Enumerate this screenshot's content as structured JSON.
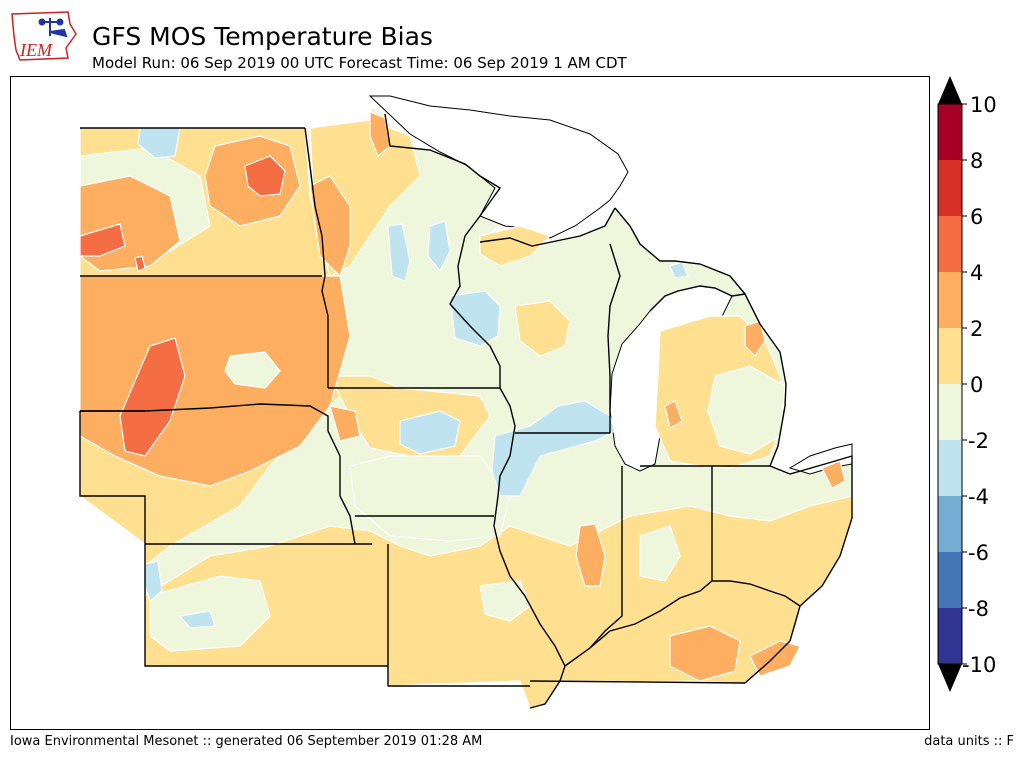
{
  "header": {
    "title": "GFS MOS Temperature Bias",
    "subtitle": "Model Run: 06 Sep 2019 00 UTC Forecast Time: 06 Sep 2019 1 AM CDT",
    "logo_text": "IEM"
  },
  "colorbar": {
    "ticks": [
      "10",
      "8",
      "6",
      "4",
      "2",
      "0",
      "-2",
      "-4",
      "-6",
      "-8",
      "-10"
    ],
    "extend": "both",
    "colors": {
      "over": "#000000",
      "8_10": "#a50026",
      "6_8": "#d73027",
      "4_6": "#f46d43",
      "2_4": "#fdae61",
      "0_2": "#fee090",
      "-2_0": "#eef6dc",
      "-4_-2": "#abd9e9",
      "-6_-4": "#74add1",
      "-8_-6": "#4575b4",
      "-10_-8": "#313695",
      "under": "#000000"
    }
  },
  "map": {
    "region": "Upper Midwest",
    "states": [
      "South Dakota",
      "Nebraska",
      "Kansas",
      "Minnesota",
      "Iowa",
      "Missouri",
      "Wisconsin",
      "Illinois",
      "Michigan",
      "Indiana",
      "Ohio",
      "Kentucky"
    ],
    "background": "#eef6dc",
    "lake_color": "#ffffff"
  },
  "footer": {
    "left": "Iowa Environmental Mesonet :: generated 06 September 2019 01:28 AM",
    "right": "data units :: F"
  }
}
